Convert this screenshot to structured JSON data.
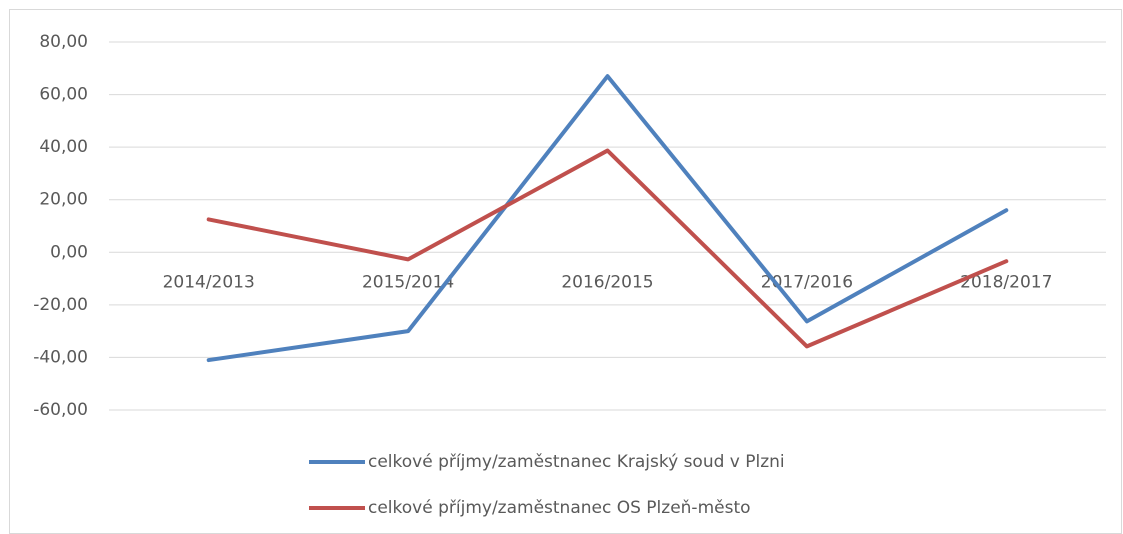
{
  "chart_data": {
    "type": "line",
    "categories": [
      "2014/2013",
      "2015/2014",
      "2016/2015",
      "2017/2016",
      "2018/2017"
    ],
    "series": [
      {
        "name": "celkové příjmy/zaměstnanec Krajský soud v Plzni",
        "color": "#4f81bd",
        "values": [
          -41,
          -30,
          67,
          -26.3,
          16
        ]
      },
      {
        "name": "celkové příjmy/zaměstnanec OS Plzeň-město",
        "color": "#c0504d",
        "values": [
          12.5,
          -2.7,
          38.7,
          -35.8,
          -3.4
        ]
      }
    ],
    "ylim": [
      -60,
      80
    ],
    "yticks": [
      {
        "value": -60,
        "label": "-60,00"
      },
      {
        "value": -40,
        "label": "-40,00"
      },
      {
        "value": -20,
        "label": "-20,00"
      },
      {
        "value": 0,
        "label": "0,00"
      },
      {
        "value": 20,
        "label": "20,00"
      },
      {
        "value": 40,
        "label": "40,00"
      },
      {
        "value": 60,
        "label": "60,00"
      },
      {
        "value": 80,
        "label": "80,00"
      }
    ],
    "grid": true,
    "legend": "bottom"
  }
}
